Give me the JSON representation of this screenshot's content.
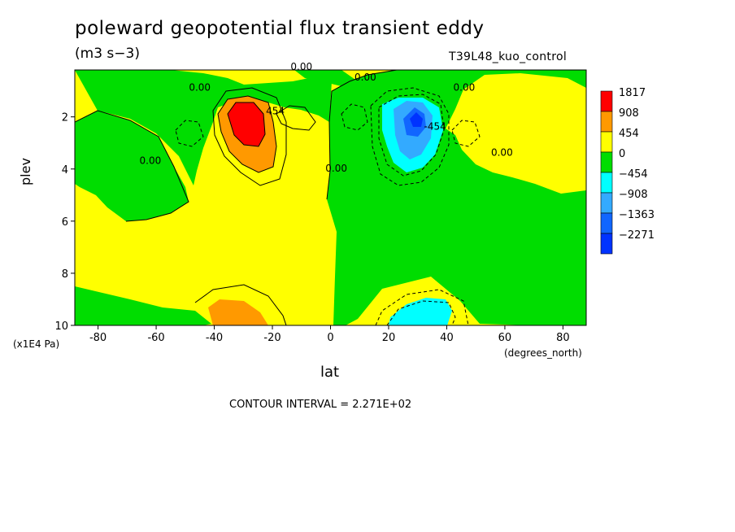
{
  "header": {
    "title": "poleward geopotential flux transient eddy",
    "units": "(m3 s−3)",
    "dataset": "T39L48_kuo_control"
  },
  "footer": {
    "contour_interval": "CONTOUR INTERVAL = 2.271E+02"
  },
  "chart_data": {
    "type": "heatmap",
    "title": "poleward geopotential flux transient eddy",
    "xlabel": "lat",
    "ylabel": "plev",
    "x_unit": "(degrees_north)",
    "y_unit": "(x1E4 Pa)",
    "xlim": [
      -88,
      88
    ],
    "ylim": [
      10,
      0.2
    ],
    "x_ticks": [
      -80,
      -60,
      -40,
      -20,
      0,
      20,
      40,
      60,
      80
    ],
    "y_ticks": [
      2,
      4,
      6,
      8,
      10
    ],
    "legend": {
      "position": "right",
      "levels": [
        "1817",
        "908",
        "454",
        "0",
        "−454",
        "−908",
        "−1363",
        "−2271"
      ],
      "colors": [
        "#ff0000",
        "#ff9900",
        "#ffff00",
        "#00dd00",
        "#00ffff",
        "#33aaff",
        "#1166ff",
        "#0033ff"
      ]
    },
    "contour_labels": [
      {
        "text": "0.00",
        "lat": -45,
        "plev": 1.0
      },
      {
        "text": "0.00",
        "lat": -62,
        "plev": 3.8
      },
      {
        "text": "0.00",
        "lat": -10,
        "plev": 0.2
      },
      {
        "text": "0.00",
        "lat": 12,
        "plev": 0.6
      },
      {
        "text": "454",
        "lat": -19,
        "plev": 1.9
      },
      {
        "text": "0.00",
        "lat": 2,
        "plev": 4.1
      },
      {
        "text": "-454",
        "lat": 36,
        "plev": 2.5
      },
      {
        "text": "0.00",
        "lat": 46,
        "plev": 1.0
      },
      {
        "text": "0.00",
        "lat": 59,
        "plev": 3.5
      }
    ],
    "features": [
      {
        "name": "positive maximum",
        "lat": -30,
        "plev": 2.0,
        "value": 1817
      },
      {
        "name": "negative minimum",
        "lat": 30,
        "plev": 2.0,
        "value": -2271
      },
      {
        "name": "surface positive",
        "lat": -29,
        "plev": 9.4,
        "value": 908
      },
      {
        "name": "surface negative",
        "lat": 32,
        "plev": 9.4,
        "value": -908
      }
    ]
  }
}
